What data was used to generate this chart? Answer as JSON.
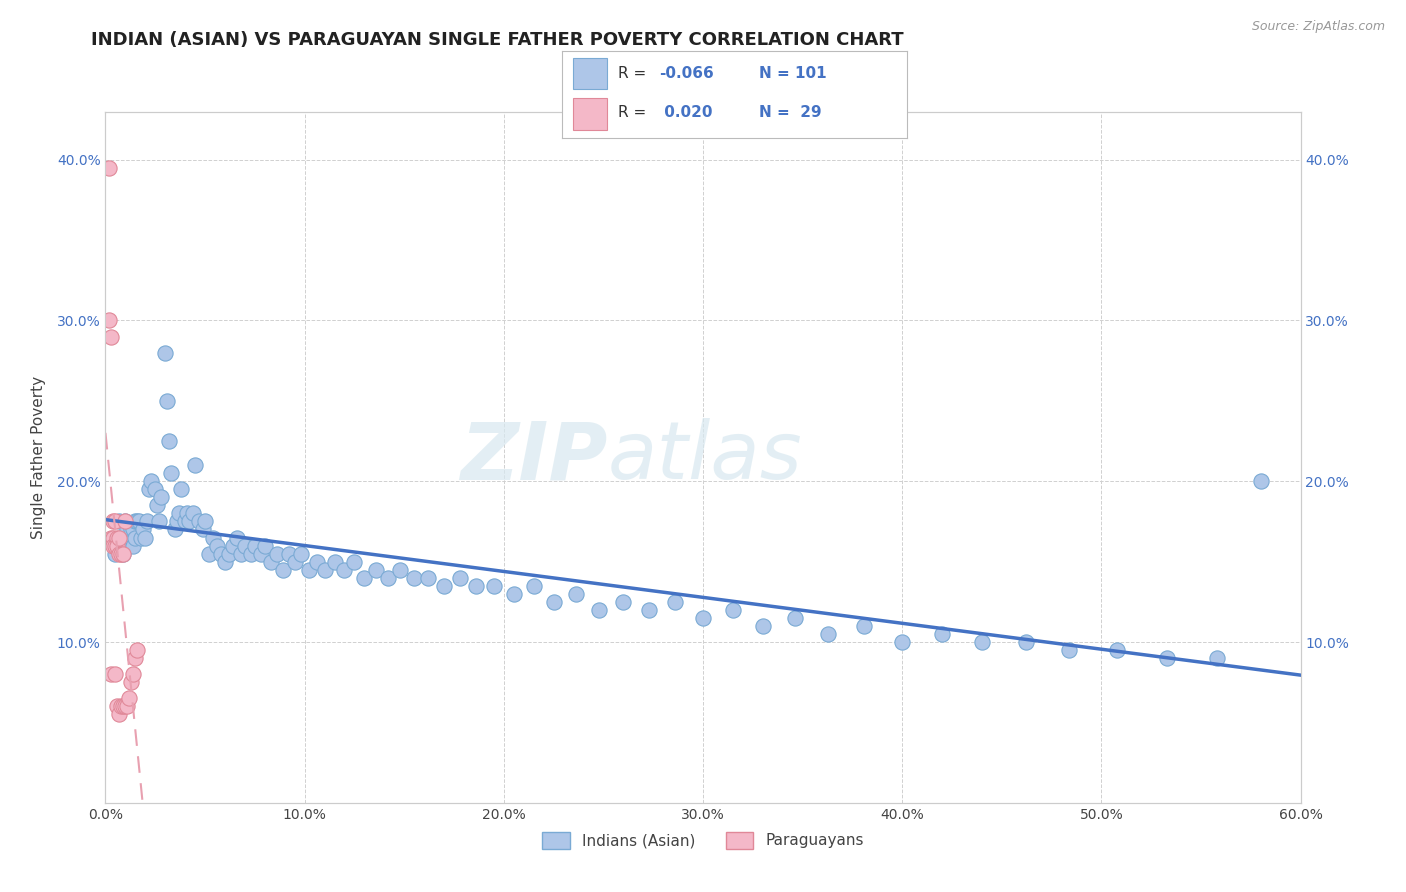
{
  "title": "INDIAN (ASIAN) VS PARAGUAYAN SINGLE FATHER POVERTY CORRELATION CHART",
  "source_text": "Source: ZipAtlas.com",
  "ylabel": "Single Father Poverty",
  "xlim": [
    0.0,
    0.6
  ],
  "ylim": [
    0.0,
    0.43
  ],
  "xtick_labels": [
    "0.0%",
    "10.0%",
    "20.0%",
    "30.0%",
    "40.0%",
    "50.0%",
    "60.0%"
  ],
  "xtick_vals": [
    0.0,
    0.1,
    0.2,
    0.3,
    0.4,
    0.5,
    0.6
  ],
  "ytick_labels": [
    "10.0%",
    "20.0%",
    "30.0%",
    "40.0%"
  ],
  "ytick_vals": [
    0.1,
    0.2,
    0.3,
    0.4
  ],
  "watermark": "ZIPatlas",
  "R_blue": -0.066,
  "N_blue": 101,
  "R_pink": 0.02,
  "N_pink": 29,
  "background_color": "#ffffff",
  "grid_color": "#d0d0d0",
  "title_fontsize": 13,
  "axis_label_fontsize": 11,
  "tick_fontsize": 10,
  "scatter_blue_x": [
    0.005,
    0.007,
    0.008,
    0.009,
    0.01,
    0.01,
    0.011,
    0.012,
    0.013,
    0.013,
    0.014,
    0.014,
    0.015,
    0.015,
    0.016,
    0.017,
    0.018,
    0.019,
    0.02,
    0.021,
    0.022,
    0.023,
    0.025,
    0.026,
    0.027,
    0.028,
    0.03,
    0.031,
    0.032,
    0.033,
    0.035,
    0.036,
    0.037,
    0.038,
    0.04,
    0.041,
    0.042,
    0.044,
    0.045,
    0.047,
    0.049,
    0.05,
    0.052,
    0.054,
    0.056,
    0.058,
    0.06,
    0.062,
    0.064,
    0.066,
    0.068,
    0.07,
    0.073,
    0.075,
    0.078,
    0.08,
    0.083,
    0.086,
    0.089,
    0.092,
    0.095,
    0.098,
    0.102,
    0.106,
    0.11,
    0.115,
    0.12,
    0.125,
    0.13,
    0.136,
    0.142,
    0.148,
    0.155,
    0.162,
    0.17,
    0.178,
    0.186,
    0.195,
    0.205,
    0.215,
    0.225,
    0.236,
    0.248,
    0.26,
    0.273,
    0.286,
    0.3,
    0.315,
    0.33,
    0.346,
    0.363,
    0.381,
    0.4,
    0.42,
    0.44,
    0.462,
    0.484,
    0.508,
    0.533,
    0.558,
    0.58
  ],
  "scatter_blue_y": [
    0.155,
    0.175,
    0.165,
    0.155,
    0.175,
    0.165,
    0.17,
    0.16,
    0.165,
    0.17,
    0.16,
    0.17,
    0.175,
    0.165,
    0.175,
    0.175,
    0.165,
    0.17,
    0.165,
    0.175,
    0.195,
    0.2,
    0.195,
    0.185,
    0.175,
    0.19,
    0.28,
    0.25,
    0.225,
    0.205,
    0.17,
    0.175,
    0.18,
    0.195,
    0.175,
    0.18,
    0.175,
    0.18,
    0.21,
    0.175,
    0.17,
    0.175,
    0.155,
    0.165,
    0.16,
    0.155,
    0.15,
    0.155,
    0.16,
    0.165,
    0.155,
    0.16,
    0.155,
    0.16,
    0.155,
    0.16,
    0.15,
    0.155,
    0.145,
    0.155,
    0.15,
    0.155,
    0.145,
    0.15,
    0.145,
    0.15,
    0.145,
    0.15,
    0.14,
    0.145,
    0.14,
    0.145,
    0.14,
    0.14,
    0.135,
    0.14,
    0.135,
    0.135,
    0.13,
    0.135,
    0.125,
    0.13,
    0.12,
    0.125,
    0.12,
    0.125,
    0.115,
    0.12,
    0.11,
    0.115,
    0.105,
    0.11,
    0.1,
    0.105,
    0.1,
    0.1,
    0.095,
    0.095,
    0.09,
    0.09,
    0.2
  ],
  "scatter_pink_x": [
    0.002,
    0.002,
    0.003,
    0.003,
    0.003,
    0.004,
    0.004,
    0.004,
    0.005,
    0.005,
    0.005,
    0.006,
    0.006,
    0.006,
    0.007,
    0.007,
    0.007,
    0.008,
    0.008,
    0.009,
    0.009,
    0.01,
    0.01,
    0.011,
    0.012,
    0.013,
    0.014,
    0.015,
    0.016
  ],
  "scatter_pink_y": [
    0.395,
    0.3,
    0.29,
    0.165,
    0.08,
    0.175,
    0.165,
    0.16,
    0.175,
    0.16,
    0.08,
    0.165,
    0.16,
    0.06,
    0.165,
    0.155,
    0.055,
    0.155,
    0.06,
    0.155,
    0.06,
    0.175,
    0.06,
    0.06,
    0.065,
    0.075,
    0.08,
    0.09,
    0.095
  ]
}
